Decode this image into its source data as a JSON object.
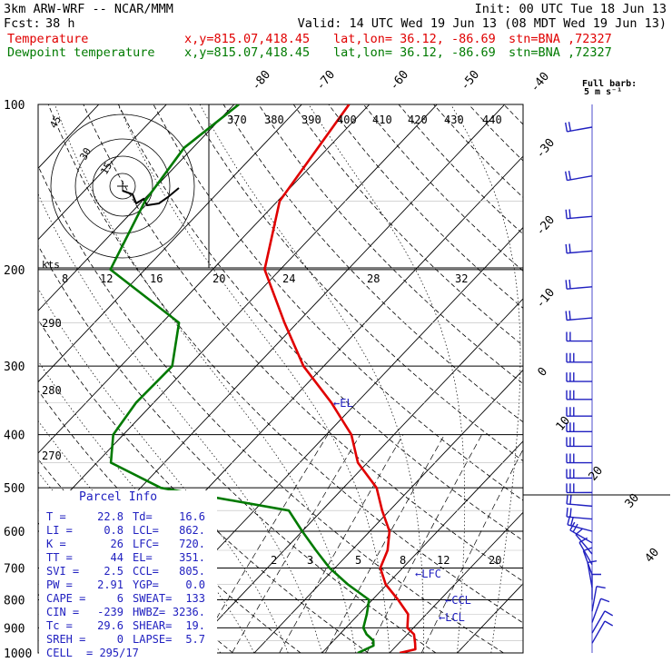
{
  "header": {
    "model": "3km ARW-WRF -- NCAR/MMM",
    "init": "Init: 00 UTC Tue 18 Jun 13",
    "fcst_label": "Fcst:",
    "fcst_value": "38 h",
    "valid": "Valid: 14 UTC Wed 19 Jun 13 (08 MDT Wed 19 Jun 13)",
    "temp_label": "Temperature",
    "dew_label": "Dewpoint temperature",
    "xy": "x,y=815.07,418.45",
    "latlon": "lat,lon= 36.12, -86.69",
    "stn": "stn=BNA ,72327",
    "colors": {
      "temperature": "#e00000",
      "dewpoint": "#007a00",
      "wind": "#2020c0",
      "parcel": "#2020c0"
    }
  },
  "barb_legend": {
    "title": "Full barb:",
    "value": "5 m s⁻¹"
  },
  "hodograph": {
    "units": "kts",
    "ring_labels": [
      "45",
      "30",
      "15"
    ]
  },
  "el_label": "←EL",
  "lfc_label": "←LFC",
  "ccl_label": "←CCL",
  "lcl_label": "←LCL",
  "parcel_info": {
    "title": "Parcel Info",
    "rows": [
      [
        "T",
        "22.8",
        "Td",
        "16.6"
      ],
      [
        "LI",
        "0.8",
        "LCL",
        "862."
      ],
      [
        "K",
        "26",
        "LFC",
        "720."
      ],
      [
        "TT",
        "44",
        "EL",
        "351."
      ],
      [
        "SVI",
        "2.5",
        "CCL",
        "805."
      ],
      [
        "PW",
        "2.91",
        "YGP",
        "0.0"
      ],
      [
        "CAPE",
        "6",
        "SWEAT",
        "133"
      ],
      [
        "CIN",
        "-239",
        "HWBZ",
        "3236."
      ],
      [
        "Tc",
        "29.6",
        "SHEAR",
        "19."
      ],
      [
        "SREH",
        "0",
        "LAPSE",
        "5.7"
      ],
      [
        "CELL",
        "295/17",
        "",
        ""
      ]
    ]
  },
  "chart_data": {
    "type": "line",
    "title": "",
    "xlabel": "",
    "ylabel": "",
    "pressure_ticks": [
      100,
      200,
      300,
      400,
      500,
      600,
      700,
      800,
      900,
      1000
    ],
    "isotherm_labels": [
      "-80",
      "-70",
      "-60",
      "-50",
      "-40",
      "-30",
      "-20",
      "-10",
      "0",
      "10",
      "20",
      "30",
      "40"
    ],
    "theta_labels": [
      "370",
      "380",
      "390",
      "400",
      "410",
      "420",
      "430",
      "440"
    ],
    "mixing_ratio_labels_top": [
      "8",
      "12",
      "16",
      "20",
      "24",
      "28",
      "32"
    ],
    "mixing_ratio_labels_bottom": [
      "2",
      "3",
      "5",
      "8",
      "12",
      "20"
    ],
    "theta_e_labels": [
      "290",
      "280",
      "270"
    ],
    "series": [
      {
        "name": "Temperature",
        "color": "#e00000",
        "points": [
          [
            1000,
            21.5
          ],
          [
            985,
            23.3
          ],
          [
            960,
            22.4
          ],
          [
            925,
            21.0
          ],
          [
            900,
            19.1
          ],
          [
            850,
            17.3
          ],
          [
            800,
            13.8
          ],
          [
            750,
            9.8
          ],
          [
            700,
            6.7
          ],
          [
            650,
            5.3
          ],
          [
            600,
            2.9
          ],
          [
            550,
            -1.1
          ],
          [
            500,
            -5.1
          ],
          [
            450,
            -11.4
          ],
          [
            400,
            -16.3
          ],
          [
            350,
            -23.7
          ],
          [
            300,
            -33.0
          ],
          [
            250,
            -41.9
          ],
          [
            200,
            -52.3
          ],
          [
            150,
            -59.7
          ],
          [
            100,
            -63.0
          ]
        ]
      },
      {
        "name": "Dewpoint temperature",
        "color": "#007a00",
        "points": [
          [
            1000,
            15.3
          ],
          [
            970,
            16.6
          ],
          [
            950,
            15.9
          ],
          [
            925,
            14.0
          ],
          [
            900,
            12.6
          ],
          [
            850,
            11.2
          ],
          [
            800,
            9.5
          ],
          [
            750,
            4.2
          ],
          [
            700,
            -0.8
          ],
          [
            650,
            -5.3
          ],
          [
            600,
            -10.0
          ],
          [
            550,
            -14.9
          ],
          [
            500,
            -37.0
          ],
          [
            450,
            -47.9
          ],
          [
            400,
            -51.5
          ],
          [
            350,
            -52.6
          ],
          [
            300,
            -52.4
          ],
          [
            250,
            -57.5
          ],
          [
            200,
            -75.1
          ],
          [
            150,
            -79.6
          ],
          [
            120,
            -81.3
          ],
          [
            100,
            -79.3
          ]
        ]
      }
    ],
    "wind_barbs": [
      {
        "p": 110,
        "dir": 260,
        "spd_ms": 10
      },
      {
        "p": 135,
        "dir": 260,
        "spd_ms": 10
      },
      {
        "p": 160,
        "dir": 265,
        "spd_ms": 10
      },
      {
        "p": 185,
        "dir": 265,
        "spd_ms": 10
      },
      {
        "p": 215,
        "dir": 265,
        "spd_ms": 10
      },
      {
        "p": 245,
        "dir": 265,
        "spd_ms": 10
      },
      {
        "p": 270,
        "dir": 270,
        "spd_ms": 10
      },
      {
        "p": 295,
        "dir": 270,
        "spd_ms": 15
      },
      {
        "p": 320,
        "dir": 270,
        "spd_ms": 15
      },
      {
        "p": 345,
        "dir": 270,
        "spd_ms": 15
      },
      {
        "p": 370,
        "dir": 270,
        "spd_ms": 15
      },
      {
        "p": 395,
        "dir": 270,
        "spd_ms": 15
      },
      {
        "p": 420,
        "dir": 270,
        "spd_ms": 15
      },
      {
        "p": 450,
        "dir": 270,
        "spd_ms": 15
      },
      {
        "p": 480,
        "dir": 270,
        "spd_ms": 15
      },
      {
        "p": 510,
        "dir": 270,
        "spd_ms": 15
      },
      {
        "p": 540,
        "dir": 275,
        "spd_ms": 10
      },
      {
        "p": 570,
        "dir": 275,
        "spd_ms": 10
      },
      {
        "p": 600,
        "dir": 285,
        "spd_ms": 10
      },
      {
        "p": 630,
        "dir": 300,
        "spd_ms": 10
      },
      {
        "p": 660,
        "dir": 320,
        "spd_ms": 5
      },
      {
        "p": 690,
        "dir": 330,
        "spd_ms": 5
      },
      {
        "p": 720,
        "dir": 340,
        "spd_ms": 5
      },
      {
        "p": 760,
        "dir": 350,
        "spd_ms": 5
      },
      {
        "p": 800,
        "dir": 0,
        "spd_ms": 5
      },
      {
        "p": 840,
        "dir": 10,
        "spd_ms": 5
      },
      {
        "p": 880,
        "dir": 20,
        "spd_ms": 5
      },
      {
        "p": 920,
        "dir": 30,
        "spd_ms": 5
      },
      {
        "p": 960,
        "dir": 30,
        "spd_ms": 5
      }
    ]
  }
}
